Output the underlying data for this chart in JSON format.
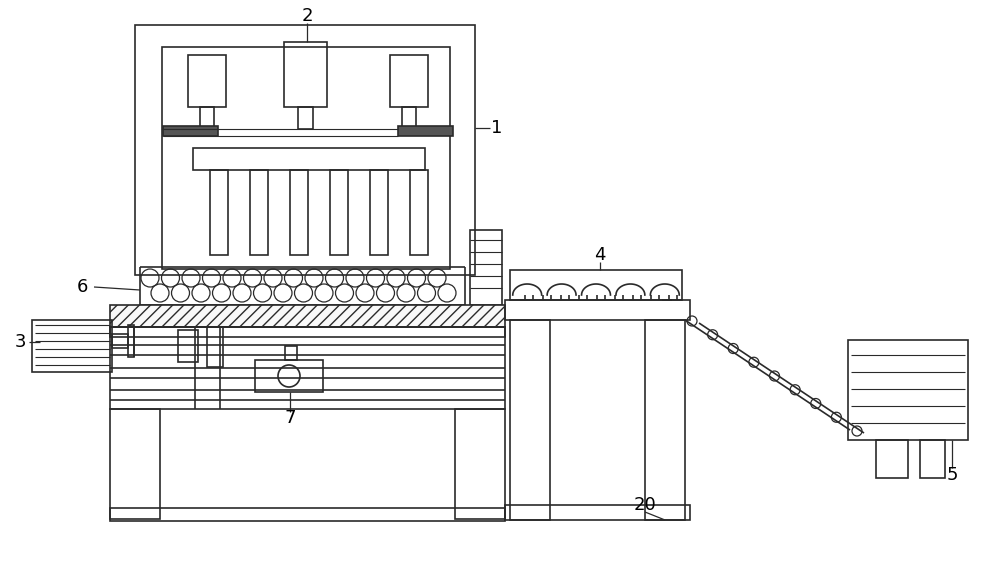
{
  "bg_color": "#ffffff",
  "line_color": "#2a2a2a",
  "label_color": "#000000",
  "fig_width": 10.0,
  "fig_height": 5.71
}
